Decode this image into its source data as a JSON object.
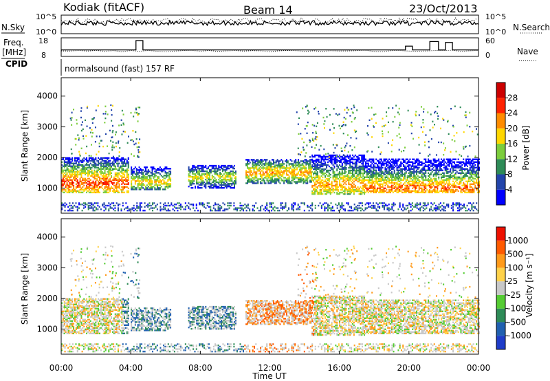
{
  "header": {
    "station": "Kodiak (fitACF)",
    "beam": "Beam 14",
    "date": "23/Oct/2013"
  },
  "noise_panel": {
    "left_label": "N.Sky",
    "left_ticks": [
      "10^5",
      "10^0"
    ],
    "right_label": "N.Search",
    "right_ticks": [
      "10^5",
      "10^0"
    ]
  },
  "freq_panel": {
    "left_label_line1": "Freq.",
    "left_label_line2": "[MHz]",
    "left_ticks": [
      "18",
      "8"
    ],
    "right_label": "Nave",
    "right_ticks": [
      "60",
      "0"
    ]
  },
  "cpid_panel": {
    "label": "CPID",
    "mode_text": "normalsound (fast) 157 RF"
  },
  "power_panel": {
    "y_label": "Slant Range [km]",
    "y_ticks": [
      "1000",
      "2000",
      "3000",
      "4000"
    ],
    "colorbar_label": "Power [dB]",
    "colorbar_ticks": [
      "4",
      "8",
      "12",
      "16",
      "20",
      "24",
      "28"
    ],
    "colors": [
      "#0000ff",
      "#2244aa",
      "#2e8b57",
      "#7ccd3c",
      "#ffd700",
      "#ff8c00",
      "#ff2200",
      "#cc0000"
    ]
  },
  "velocity_panel": {
    "y_label": "Slant Range [km]",
    "y_ticks": [
      "1000",
      "2000",
      "3000",
      "4000"
    ],
    "colorbar_label": "Velocity [m s⁻¹]",
    "colorbar_ticks": [
      "1000",
      "500",
      "100",
      "25",
      "-25",
      "-100",
      "-500",
      "-1000"
    ],
    "colors": [
      "#1e3cc8",
      "#2060b0",
      "#2e8b57",
      "#55cc33",
      "#c8c8c8",
      "#ffd24a",
      "#ff9a1a",
      "#ff5a00",
      "#ee1100"
    ]
  },
  "x_axis": {
    "ticks": [
      "00:00",
      "04:00",
      "08:00",
      "12:00",
      "16:00",
      "20:00",
      "00:00"
    ],
    "label": "Time UT"
  },
  "chart_data": {
    "type": "heatmap",
    "title": "Kodiak (fitACF)",
    "subtitle": "Beam 14 — 23/Oct/2013",
    "xlabel": "Time UT",
    "xlim": [
      "00:00",
      "24:00"
    ],
    "panels": [
      {
        "name": "Power",
        "ylabel": "Slant Range [km]",
        "ylim": [
          180,
          4600
        ],
        "colorbar": "Power [dB]",
        "colorbar_range": [
          0,
          32
        ],
        "echo_bands": [
          {
            "t_start": 0.0,
            "t_end": 3.9,
            "range_min": 850,
            "range_max": 2000,
            "peak_range": 1150,
            "peak_power": 26
          },
          {
            "t_start": 4.0,
            "t_end": 6.3,
            "range_min": 950,
            "range_max": 1700,
            "peak_range": 1200,
            "peak_power": 20
          },
          {
            "t_start": 7.3,
            "t_end": 10.0,
            "range_min": 1000,
            "range_max": 1750,
            "peak_range": 1350,
            "peak_power": 18
          },
          {
            "t_start": 10.6,
            "t_end": 14.4,
            "range_min": 1150,
            "range_max": 1950,
            "peak_range": 1500,
            "peak_power": 22
          },
          {
            "t_start": 14.4,
            "t_end": 17.4,
            "range_min": 800,
            "range_max": 2100,
            "peak_range": 1100,
            "peak_power": 22
          },
          {
            "t_start": 17.4,
            "t_end": 24.0,
            "range_min": 850,
            "range_max": 1950,
            "peak_range": 1000,
            "peak_power": 24
          }
        ]
      },
      {
        "name": "Velocity",
        "ylabel": "Slant Range [km]",
        "ylim": [
          180,
          4600
        ],
        "colorbar": "Velocity [m s⁻¹]",
        "colorbar_range": [
          -1000,
          1000
        ]
      }
    ]
  }
}
